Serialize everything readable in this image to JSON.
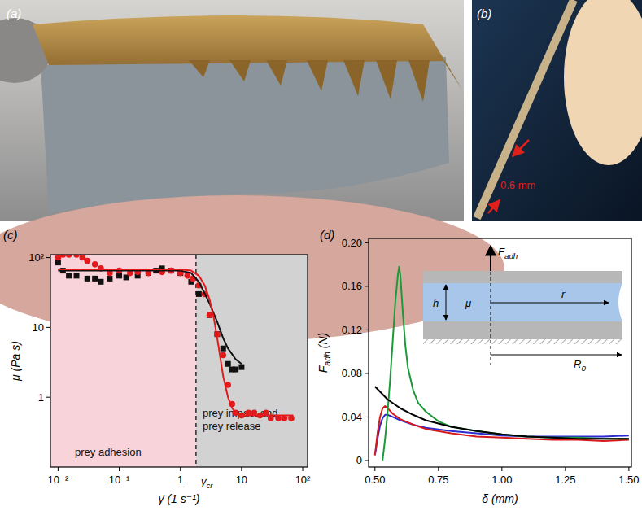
{
  "photos": [
    {
      "label": "(a)"
    },
    {
      "label": "(b)",
      "annotation": "0.6 mm"
    }
  ],
  "chart_data": [
    {
      "type": "scatter",
      "title": "(c)",
      "log": true,
      "grid": false,
      "x_label": [
        "γ̇ (1 s⁻¹)"
      ],
      "y_label": [
        "μ (Pa s)"
      ],
      "xlim": [
        0.0075,
        120
      ],
      "ylim": [
        0.1,
        110
      ],
      "xticks": [
        {
          "value": 0.01,
          "label": "10⁻²"
        },
        {
          "value": 0.1,
          "label": "10⁻¹"
        },
        1,
        10,
        {
          "value": 100,
          "label": "10²"
        }
      ],
      "yticks": [
        1,
        10,
        {
          "value": 100,
          "label": "10²"
        }
      ],
      "critical": {
        "value": 1.8,
        "label": [
          "γ̇",
          {
            "sub": "cr"
          }
        ]
      },
      "annotations": [
        [
          "prey adhesion"
        ],
        [
          "prey impact and",
          "prey release"
        ]
      ],
      "series": [
        {
          "type": "scatter",
          "marker": "square",
          "color": "#111111",
          "x": [
            0.01,
            0.012,
            0.015,
            0.02,
            0.03,
            0.04,
            0.05,
            0.07,
            0.1,
            0.13,
            0.2,
            0.3,
            0.4,
            0.5,
            0.7,
            1,
            1.5,
            2,
            3,
            4,
            5,
            6,
            7,
            8,
            10
          ],
          "values": [
            85,
            65,
            55,
            55,
            50,
            50,
            45,
            50,
            55,
            52,
            55,
            60,
            65,
            70,
            65,
            60,
            45,
            30,
            15,
            8,
            5,
            3,
            2.5,
            2.5,
            2.7
          ]
        },
        {
          "type": "scatter",
          "marker": "circle",
          "color": "#e31a1c",
          "x": [
            0.01,
            0.012,
            0.015,
            0.02,
            0.025,
            0.03,
            0.04,
            0.05,
            0.07,
            0.1,
            0.15,
            0.2,
            0.3,
            0.5,
            0.7,
            1,
            1.3,
            1.6,
            2,
            2.5,
            3,
            4,
            5,
            6,
            7,
            8,
            10,
            13,
            16,
            20,
            25,
            30,
            40,
            50,
            65
          ],
          "values": [
            100,
            110,
            110,
            110,
            100,
            90,
            80,
            70,
            60,
            65,
            60,
            62,
            60,
            62,
            65,
            60,
            55,
            50,
            40,
            30,
            15,
            8,
            4,
            1.5,
            0.8,
            0.6,
            0.55,
            0.6,
            0.6,
            0.55,
            0.6,
            0.5,
            0.5,
            0.5,
            0.5
          ]
        },
        {
          "type": "line",
          "color": "#111111",
          "x": [
            0.01,
            0.1,
            1,
            1.5,
            2,
            3,
            4,
            5,
            6,
            8,
            10
          ],
          "values": [
            65,
            65,
            65,
            60,
            45,
            22,
            12,
            7,
            5,
            3.5,
            3
          ]
        },
        {
          "type": "line",
          "color": "#e31a1c",
          "x": [
            0.01,
            0.1,
            1,
            1.5,
            2,
            2.5,
            3,
            3.5,
            4,
            5,
            6,
            7,
            8,
            10,
            20,
            70
          ],
          "values": [
            68,
            68,
            68,
            65,
            55,
            40,
            25,
            14,
            7,
            2,
            1,
            0.7,
            0.6,
            0.55,
            0.55,
            0.55
          ]
        }
      ]
    },
    {
      "type": "line",
      "title": "(d)",
      "grid": false,
      "x_label": [
        "δ (mm)"
      ],
      "y_label": [
        "F",
        {
          "sub": "adh"
        },
        " (N)"
      ],
      "xlim": [
        0.475,
        1.51
      ],
      "ylim": [
        -0.006,
        0.204
      ],
      "xticks": [
        {
          "value": 0.5,
          "label": "0.50"
        },
        {
          "value": 0.75,
          "label": "0.75"
        },
        {
          "value": 1,
          "label": "1.00"
        },
        {
          "value": 1.25,
          "label": "1.25"
        },
        {
          "value": 1.5,
          "label": "1.50"
        }
      ],
      "yticks": [
        0,
        0.04,
        0.08,
        0.12,
        0.16,
        {
          "value": 0.2,
          "label": "0.20"
        }
      ],
      "inset_labels": {
        "force": [
          "F",
          {
            "sub": "adh"
          }
        ],
        "gap": "h",
        "viscosity": "μ",
        "radius": "r",
        "outer_radius": [
          "R",
          {
            "sub": "0"
          }
        ]
      },
      "series": [
        {
          "color": "#2b2bd0",
          "x": [
            0.5,
            0.51,
            0.52,
            0.53,
            0.54,
            0.55,
            0.57,
            0.6,
            0.65,
            0.7,
            0.8,
            0.9,
            1.0,
            1.1,
            1.2,
            1.3,
            1.4,
            1.5
          ],
          "values": [
            0.005,
            0.02,
            0.032,
            0.039,
            0.042,
            0.042,
            0.04,
            0.037,
            0.033,
            0.03,
            0.027,
            0.025,
            0.023,
            0.022,
            0.022,
            0.022,
            0.022,
            0.023
          ]
        },
        {
          "color": "#d7191c",
          "x": [
            0.5,
            0.51,
            0.52,
            0.53,
            0.54,
            0.55,
            0.57,
            0.6,
            0.65,
            0.7,
            0.8,
            0.9,
            1.0,
            1.1,
            1.2,
            1.3,
            1.4,
            1.5
          ],
          "values": [
            0.005,
            0.025,
            0.04,
            0.048,
            0.05,
            0.048,
            0.043,
            0.038,
            0.033,
            0.029,
            0.025,
            0.022,
            0.021,
            0.02,
            0.019,
            0.019,
            0.018,
            0.019
          ]
        },
        {
          "color": "#1a9a3a",
          "x": [
            0.53,
            0.54,
            0.55,
            0.56,
            0.57,
            0.58,
            0.59,
            0.595,
            0.6,
            0.61,
            0.62,
            0.63,
            0.65,
            0.67,
            0.7,
            0.75,
            0.8,
            0.9,
            1.0,
            1.1,
            1.2,
            1.3,
            1.4,
            1.5
          ],
          "values": [
            0.0,
            0.02,
            0.045,
            0.075,
            0.11,
            0.145,
            0.17,
            0.178,
            0.17,
            0.135,
            0.105,
            0.085,
            0.065,
            0.053,
            0.045,
            0.036,
            0.031,
            0.027,
            0.024,
            0.022,
            0.021,
            0.021,
            0.02,
            0.02
          ]
        },
        {
          "color": "#000000",
          "x": [
            0.5,
            0.55,
            0.6,
            0.65,
            0.7,
            0.75,
            0.8,
            0.9,
            1.0,
            1.1,
            1.2,
            1.3,
            1.4,
            1.5
          ],
          "values": [
            0.068,
            0.056,
            0.048,
            0.042,
            0.037,
            0.034,
            0.031,
            0.027,
            0.024,
            0.022,
            0.021,
            0.02,
            0.02,
            0.02
          ]
        }
      ]
    }
  ]
}
